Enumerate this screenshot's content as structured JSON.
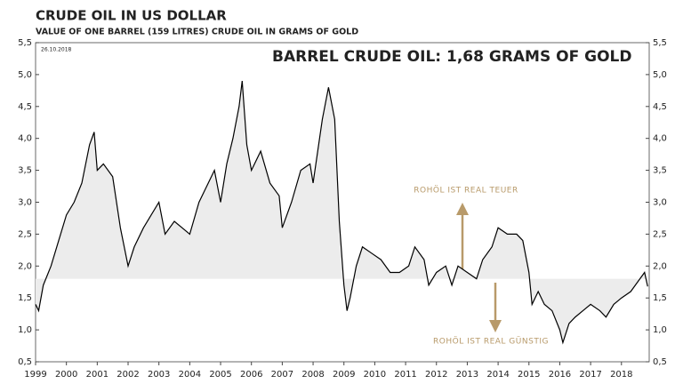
{
  "chart_data": {
    "type": "line",
    "title": "CRUDE OIL IN US DOLLAR",
    "subtitle": "VALUE OF ONE BARREL (159 LITRES) CRUDE OIL IN GRAMS OF GOLD",
    "date_note": "26.10.2018",
    "headline": "BARREL CRUDE OIL: 1,68 GRAMS OF  GOLD",
    "annotations": [
      "ROHÖL IST REAL TEUER",
      "ROHÖL IST REAL GÜNSTIG"
    ],
    "reference_value": 1.8,
    "x": [
      1999.0,
      1999.1,
      1999.25,
      1999.5,
      1999.75,
      2000.0,
      2000.25,
      2000.5,
      2000.75,
      2000.9,
      2001.0,
      2001.2,
      2001.5,
      2001.75,
      2002.0,
      2002.2,
      2002.5,
      2002.75,
      2003.0,
      2003.2,
      2003.5,
      2003.75,
      2004.0,
      2004.3,
      2004.6,
      2004.8,
      2005.0,
      2005.2,
      2005.4,
      2005.6,
      2005.7,
      2005.85,
      2006.0,
      2006.3,
      2006.6,
      2006.9,
      2007.0,
      2007.3,
      2007.6,
      2007.9,
      2008.0,
      2008.3,
      2008.5,
      2008.7,
      2008.85,
      2009.0,
      2009.1,
      2009.2,
      2009.4,
      2009.6,
      2009.9,
      2010.2,
      2010.5,
      2010.8,
      2011.1,
      2011.3,
      2011.6,
      2011.75,
      2012.0,
      2012.3,
      2012.5,
      2012.7,
      2013.0,
      2013.3,
      2013.5,
      2013.8,
      2014.0,
      2014.3,
      2014.6,
      2014.8,
      2015.0,
      2015.1,
      2015.3,
      2015.5,
      2015.75,
      2016.0,
      2016.1,
      2016.3,
      2016.5,
      2016.75,
      2017.0,
      2017.3,
      2017.5,
      2017.75,
      2018.0,
      2018.3,
      2018.6,
      2018.75,
      2018.85
    ],
    "series": [
      {
        "name": "Crude oil in grams of gold",
        "color": "#000000",
        "values": [
          1.4,
          1.3,
          1.7,
          2.0,
          2.4,
          2.8,
          3.0,
          3.3,
          3.9,
          4.1,
          3.5,
          3.6,
          3.4,
          2.6,
          2.0,
          2.3,
          2.6,
          2.8,
          3.0,
          2.5,
          2.7,
          2.6,
          2.5,
          3.0,
          3.3,
          3.5,
          3.0,
          3.6,
          4.0,
          4.5,
          4.9,
          3.9,
          3.5,
          3.8,
          3.3,
          3.1,
          2.6,
          3.0,
          3.5,
          3.6,
          3.3,
          4.3,
          4.8,
          4.3,
          2.7,
          1.7,
          1.3,
          1.5,
          2.0,
          2.3,
          2.2,
          2.1,
          1.9,
          1.9,
          2.0,
          2.3,
          2.1,
          1.7,
          1.9,
          2.0,
          1.7,
          2.0,
          1.9,
          1.8,
          2.1,
          2.3,
          2.6,
          2.5,
          2.5,
          2.4,
          1.9,
          1.4,
          1.6,
          1.4,
          1.3,
          1.0,
          0.8,
          1.1,
          1.2,
          1.3,
          1.4,
          1.3,
          1.2,
          1.4,
          1.5,
          1.6,
          1.8,
          1.9,
          1.68
        ]
      }
    ],
    "xlim": [
      1999,
      2018.9
    ],
    "xticks": [
      1999,
      2000,
      2001,
      2002,
      2003,
      2004,
      2005,
      2006,
      2007,
      2008,
      2009,
      2010,
      2011,
      2012,
      2013,
      2014,
      2015,
      2016,
      2017,
      2018
    ],
    "ylim": [
      0.5,
      5.5
    ],
    "yticks": [
      {
        "value": 0.5,
        "label": "0,5"
      },
      {
        "value": 1,
        "label": "1,0"
      },
      {
        "value": 1.5,
        "label": "1,5"
      },
      {
        "value": 2,
        "label": "2,0"
      },
      {
        "value": 2.5,
        "label": "2,5"
      },
      {
        "value": 3,
        "label": "3,0"
      },
      {
        "value": 3.5,
        "label": "3,5"
      },
      {
        "value": 4,
        "label": "4,0"
      },
      {
        "value": 4.5,
        "label": "4,5"
      },
      {
        "value": 5,
        "label": "5,0"
      },
      {
        "value": 5.5,
        "label": "5,5"
      }
    ],
    "grid": false
  }
}
